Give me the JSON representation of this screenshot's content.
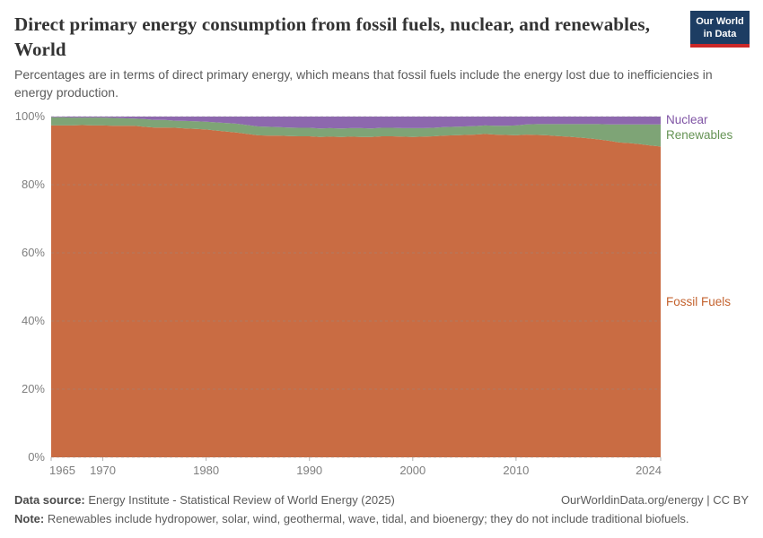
{
  "header": {
    "title": "Direct primary energy consumption from fossil fuels, nuclear, and renewables, World",
    "subtitle": "Percentages are in terms of direct primary energy, which means that fossil fuels include the energy lost due to inefficiencies in energy production.",
    "logo": {
      "line1": "Our World",
      "line2": "in Data",
      "bg_color": "#1d3d63",
      "accent_color": "#cb2828"
    }
  },
  "chart_data": {
    "type": "area",
    "stacked": true,
    "unit": "%",
    "grid": "horizontal-dashed",
    "legend_position": "right-inline",
    "ylim": [
      0,
      100
    ],
    "yticks": [
      0,
      20,
      40,
      60,
      80,
      100
    ],
    "ytick_labels": [
      "0%",
      "20%",
      "40%",
      "60%",
      "80%",
      "100%"
    ],
    "xticks": [
      1965,
      1970,
      1980,
      1990,
      2000,
      2010,
      2024
    ],
    "x": [
      1965,
      1966,
      1967,
      1968,
      1969,
      1970,
      1971,
      1972,
      1973,
      1974,
      1975,
      1976,
      1977,
      1978,
      1979,
      1980,
      1981,
      1982,
      1983,
      1984,
      1985,
      1986,
      1987,
      1988,
      1989,
      1990,
      1991,
      1992,
      1993,
      1994,
      1995,
      1996,
      1997,
      1998,
      1999,
      2000,
      2001,
      2002,
      2003,
      2004,
      2005,
      2006,
      2007,
      2008,
      2009,
      2010,
      2011,
      2012,
      2013,
      2014,
      2015,
      2016,
      2017,
      2018,
      2019,
      2020,
      2021,
      2022,
      2023,
      2024
    ],
    "series": [
      {
        "name": "Fossil Fuels",
        "color": "#c96c43",
        "label_color": "#c4632f",
        "values": [
          97.4,
          97.4,
          97.4,
          97.5,
          97.4,
          97.4,
          97.3,
          97.3,
          97.3,
          97.0,
          96.8,
          96.8,
          96.7,
          96.5,
          96.4,
          96.2,
          95.9,
          95.6,
          95.3,
          94.9,
          94.5,
          94.4,
          94.4,
          94.3,
          94.2,
          94.2,
          94.0,
          94.1,
          94.0,
          94.1,
          94.0,
          94.0,
          94.2,
          94.2,
          94.1,
          94.0,
          94.1,
          94.2,
          94.4,
          94.5,
          94.6,
          94.7,
          94.9,
          94.7,
          94.6,
          94.5,
          94.7,
          94.6,
          94.5,
          94.3,
          94.1,
          93.9,
          93.6,
          93.3,
          92.9,
          92.4,
          92.2,
          91.9,
          91.5,
          91.2
        ]
      },
      {
        "name": "Renewables",
        "color": "#7ea476",
        "label_color": "#669455",
        "values": [
          2.4,
          2.4,
          2.3,
          2.2,
          2.3,
          2.3,
          2.3,
          2.2,
          2.1,
          2.3,
          2.2,
          2.2,
          2.1,
          2.2,
          2.2,
          2.3,
          2.4,
          2.5,
          2.6,
          2.6,
          2.6,
          2.6,
          2.5,
          2.5,
          2.5,
          2.5,
          2.5,
          2.5,
          2.5,
          2.5,
          2.6,
          2.5,
          2.5,
          2.5,
          2.5,
          2.6,
          2.5,
          2.5,
          2.5,
          2.5,
          2.5,
          2.5,
          2.5,
          2.6,
          2.7,
          2.9,
          3.0,
          3.2,
          3.3,
          3.5,
          3.7,
          3.9,
          4.2,
          4.5,
          4.8,
          5.3,
          5.5,
          5.8,
          6.2,
          6.5
        ]
      },
      {
        "name": "Nuclear",
        "color": "#8d68ae",
        "label_color": "#8055a5",
        "values": [
          0.2,
          0.2,
          0.3,
          0.3,
          0.3,
          0.3,
          0.4,
          0.5,
          0.6,
          0.7,
          1.0,
          1.0,
          1.2,
          1.3,
          1.4,
          1.5,
          1.7,
          1.9,
          2.1,
          2.5,
          2.9,
          3.0,
          3.1,
          3.2,
          3.3,
          3.3,
          3.5,
          3.4,
          3.5,
          3.4,
          3.4,
          3.5,
          3.3,
          3.3,
          3.4,
          3.4,
          3.4,
          3.3,
          3.1,
          3.0,
          2.9,
          2.8,
          2.6,
          2.7,
          2.7,
          2.6,
          2.3,
          2.2,
          2.2,
          2.2,
          2.2,
          2.2,
          2.2,
          2.2,
          2.3,
          2.3,
          2.3,
          2.3,
          2.3,
          2.3
        ]
      }
    ]
  },
  "footer": {
    "datasource_label": "Data source:",
    "datasource_text": " Energy Institute - Statistical Review of World Energy (2025)",
    "rights": "OurWorldinData.org/energy | CC BY",
    "note_label": "Note:",
    "note_text": " Renewables include hydropower, solar, wind, geothermal, wave, tidal, and bioenergy; they do not include traditional biofuels."
  }
}
